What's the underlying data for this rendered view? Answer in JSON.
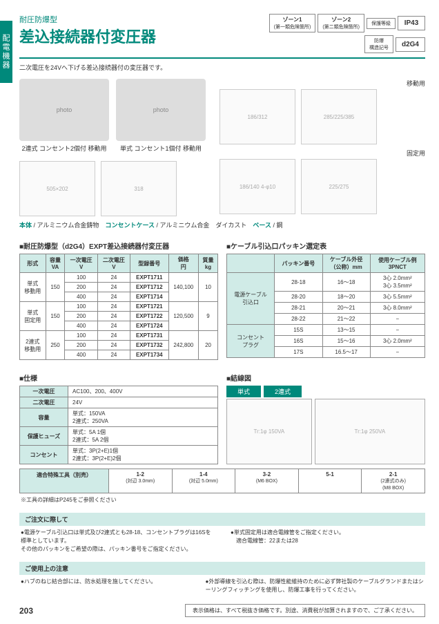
{
  "sideTab": "配電機器",
  "subtitle": "耐圧防爆型",
  "title": "差込接続器付変圧器",
  "desc": "二次電圧を24Vへ下げる差込接続器付の変圧器です。",
  "badges": {
    "zone1": "ゾーン1",
    "zone1sub": "(第一類危険箇所)",
    "zone2": "ゾーン2",
    "zone2sub": "(第二類危険箇所)",
    "protLabel": "保護等級",
    "prot": "IP43",
    "exLabel": "防爆\n構造記号",
    "ex": "d2G4"
  },
  "products": {
    "p1": "2連式 コンセント2個付 移動用",
    "p2": "単式 コンセント1個付 移動用",
    "d1": "移動用",
    "d2": "固定用"
  },
  "matLine": {
    "a": "本体",
    "b": " / アルミニウム合金鋳物　",
    "c": "コンセントケース",
    "d": " / アルミニウム合金　ダイカスト　",
    "e": "ベース",
    "f": " / 鋼"
  },
  "mainTable": {
    "title": "■耐圧防爆型（d2G4）EXPT差込接続器付変圧器",
    "headers": [
      "形式",
      "容量\nVA",
      "一次電圧\nV",
      "二次電圧\nV",
      "型録番号",
      "価格\n円",
      "質量\nkg"
    ],
    "rows": [
      {
        "type": "単式\n移動用",
        "va": "150",
        "v1": "100",
        "v2": "24",
        "model": "EXPT1711",
        "price": "",
        "wt": ""
      },
      {
        "type": "",
        "va": "",
        "v1": "200",
        "v2": "24",
        "model": "EXPT1712",
        "price": "140,100",
        "wt": "10"
      },
      {
        "type": "",
        "va": "",
        "v1": "400",
        "v2": "24",
        "model": "EXPT1714",
        "price": "",
        "wt": ""
      },
      {
        "type": "単式\n固定用",
        "va": "150",
        "v1": "100",
        "v2": "24",
        "model": "EXPT1721",
        "price": "",
        "wt": ""
      },
      {
        "type": "",
        "va": "",
        "v1": "200",
        "v2": "24",
        "model": "EXPT1722",
        "price": "120,500",
        "wt": "9"
      },
      {
        "type": "",
        "va": "",
        "v1": "400",
        "v2": "24",
        "model": "EXPT1724",
        "price": "",
        "wt": ""
      },
      {
        "type": "2連式\n移動用",
        "va": "250",
        "v1": "100",
        "v2": "24",
        "model": "EXPT1731",
        "price": "",
        "wt": ""
      },
      {
        "type": "",
        "va": "",
        "v1": "200",
        "v2": "24",
        "model": "EXPT1732",
        "price": "242,800",
        "wt": "20"
      },
      {
        "type": "",
        "va": "",
        "v1": "400",
        "v2": "24",
        "model": "EXPT1734",
        "price": "",
        "wt": ""
      }
    ]
  },
  "cableTable": {
    "title": "■ケーブル引込口パッキン選定表",
    "headers": [
      "",
      "パッキン番号",
      "ケーブル外径\n（公称）mm",
      "使用ケーブル例\n3PNCT"
    ],
    "rows": [
      {
        "g": "電源ケーブル\n引込口",
        "p": "28-18",
        "d": "16〜18",
        "c": "3心 2.0mm²\n3心 3.5mm²"
      },
      {
        "g": "",
        "p": "28-20",
        "d": "18〜20",
        "c": "3心 5.5mm²"
      },
      {
        "g": "",
        "p": "28-21",
        "d": "20〜21",
        "c": "3心 8.0mm²"
      },
      {
        "g": "",
        "p": "28-22",
        "d": "21〜22",
        "c": "−"
      },
      {
        "g": "コンセント\nプラグ",
        "p": "15S",
        "d": "13〜15",
        "c": "−"
      },
      {
        "g": "",
        "p": "16S",
        "d": "15〜16",
        "c": "3心 2.0mm²"
      },
      {
        "g": "",
        "p": "17S",
        "d": "16.5〜17",
        "c": "−"
      }
    ]
  },
  "specTable": {
    "title": "■仕様",
    "rows": [
      {
        "k": "一次電圧",
        "v": "AC100、200、400V"
      },
      {
        "k": "二次電圧",
        "v": "24V"
      },
      {
        "k": "容量",
        "v": "単式：150VA\n2連式：250VA"
      },
      {
        "k": "保護ヒューズ",
        "v": "単式：5A 1個\n2連式：5A 2個"
      },
      {
        "k": "コンセント",
        "v": "単式：3P(2+E)1個\n2連式：3P(2+E)2個"
      }
    ]
  },
  "wiring": {
    "title": "■結線図",
    "tab1": "単式",
    "tab2": "2連式"
  },
  "tools": {
    "label": "適合特殊工具（別売）",
    "items": [
      {
        "n": "1-2",
        "s": "(対辺 3.0mm)"
      },
      {
        "n": "1-4",
        "s": "(対辺 5.0mm)"
      },
      {
        "n": "3-2",
        "s": "(M6 BOX)"
      },
      {
        "n": "5-1",
        "s": ""
      },
      {
        "n": "2-1",
        "s": "(2連式のみ)\n(M8 BOX)"
      }
    ],
    "note": "※工具の詳細はP245をご参照ください"
  },
  "order": {
    "title": "ご注文に際して",
    "l1": "●電源ケーブル引込口は単式及び2連式とも28-18、コンセントプラグは16Sを標準としています。\nその他のパッキンをご希望の際は、パッキン番号をご指定ください。",
    "r1": "●単式固定用は適合電線管をご指定ください。\n　適合電線管：22または28"
  },
  "caution": {
    "title": "ご使用上の注意",
    "l1": "●ハブのねじ結合部には、防水処理を施してください。",
    "r1": "●外部導線を引込む際は、防爆性能維持のために必ず弊社製のケーブルグランドまたはシーリングフィッチングを使用し、防爆工事を行ってください。"
  },
  "pageNum": "203",
  "footerBox": "表示価格は、すべて税抜き価格です。別途、消費税が加算されますので、ご了承ください。"
}
